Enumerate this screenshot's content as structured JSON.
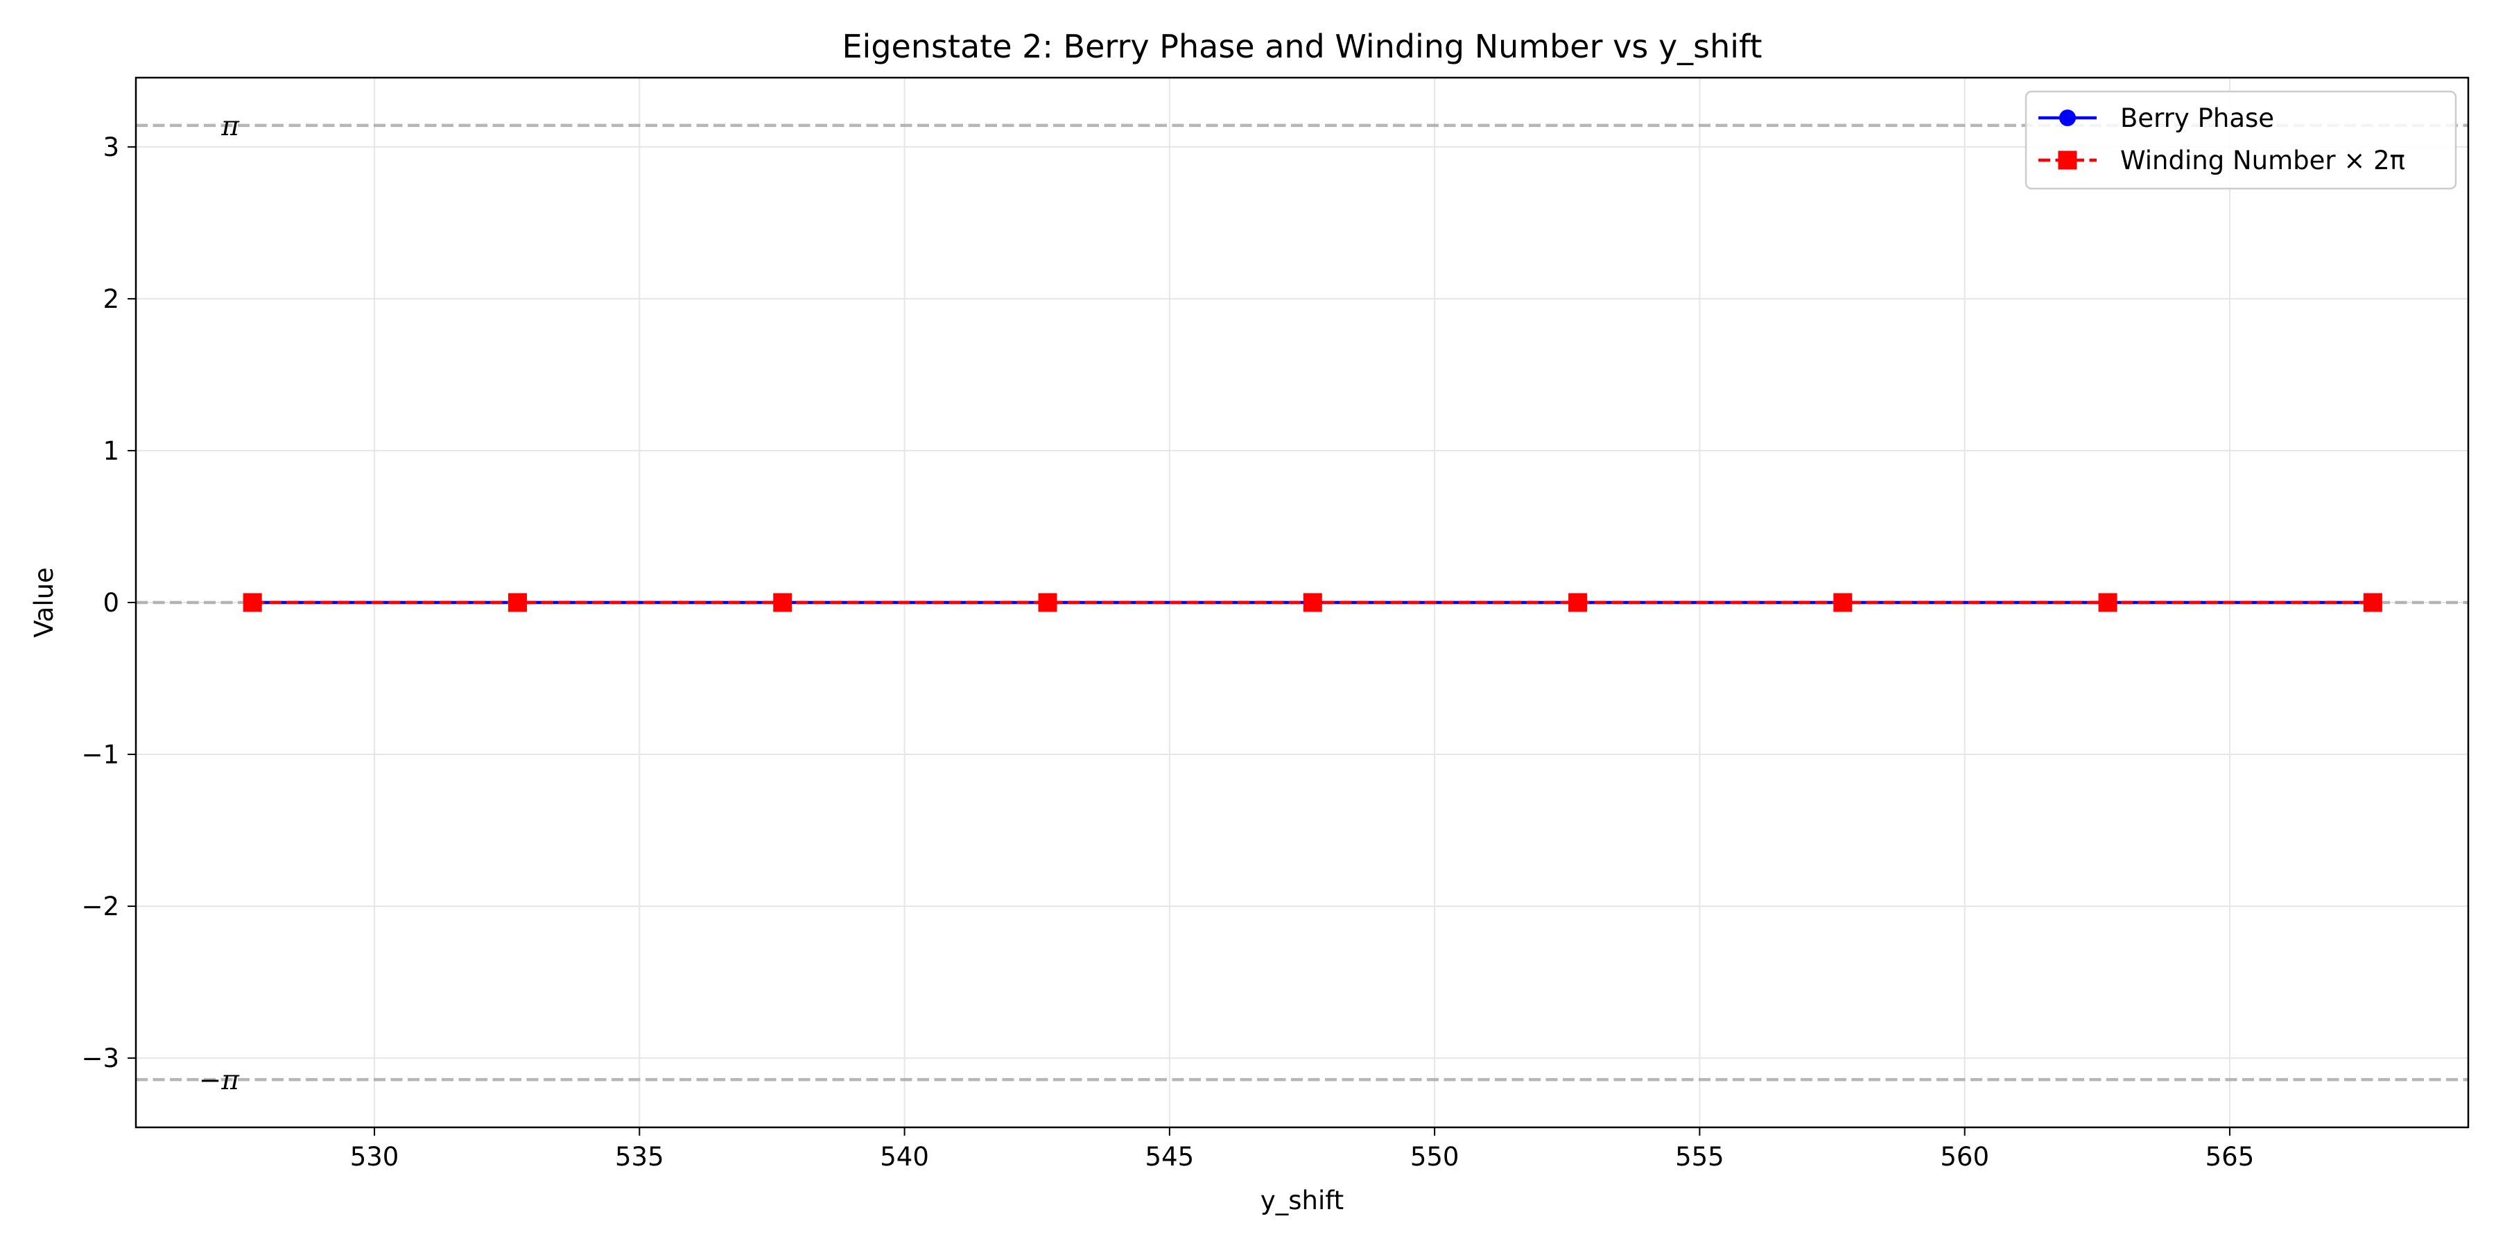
{
  "chart_data": {
    "type": "line",
    "title": "Eigenstate 2: Berry Phase and Winding Number vs y_shift",
    "xlabel": "y_shift",
    "ylabel": "Value",
    "xlim": [
      525.5,
      569.5
    ],
    "ylim": [
      -3.456,
      3.456
    ],
    "x_ticks": [
      530,
      535,
      540,
      545,
      550,
      555,
      560,
      565
    ],
    "x_tick_labels": [
      "530",
      "535",
      "540",
      "545",
      "550",
      "555",
      "560",
      "565"
    ],
    "y_ticks": [
      -3,
      -2,
      -1,
      0,
      1,
      2,
      3
    ],
    "y_tick_labels": [
      "−3",
      "−2",
      "−1",
      "0",
      "1",
      "2",
      "3"
    ],
    "grid": true,
    "legend_position": "top-right",
    "x": [
      527.7,
      532.7,
      537.7,
      542.7,
      547.7,
      552.7,
      557.7,
      562.7,
      567.7
    ],
    "series": [
      {
        "name": "Berry Phase",
        "values": [
          0,
          0,
          0,
          0,
          0,
          0,
          0,
          0,
          0
        ],
        "color": "#0000ff",
        "line_style": "solid",
        "marker": "circle"
      },
      {
        "name": "Winding Number × 2π",
        "values": [
          0,
          0,
          0,
          0,
          0,
          0,
          0,
          0,
          0
        ],
        "color": "#ff0000",
        "line_style": "dashed",
        "marker": "square"
      }
    ],
    "reference_lines": [
      {
        "value": 3.14159,
        "label": "π",
        "color": "#aaaaaa",
        "line_style": "dashed"
      },
      {
        "value": 0,
        "label": "",
        "color": "#aaaaaa",
        "line_style": "dashed"
      },
      {
        "value": -3.14159,
        "label": "−π",
        "color": "#aaaaaa",
        "line_style": "dashed"
      }
    ]
  }
}
